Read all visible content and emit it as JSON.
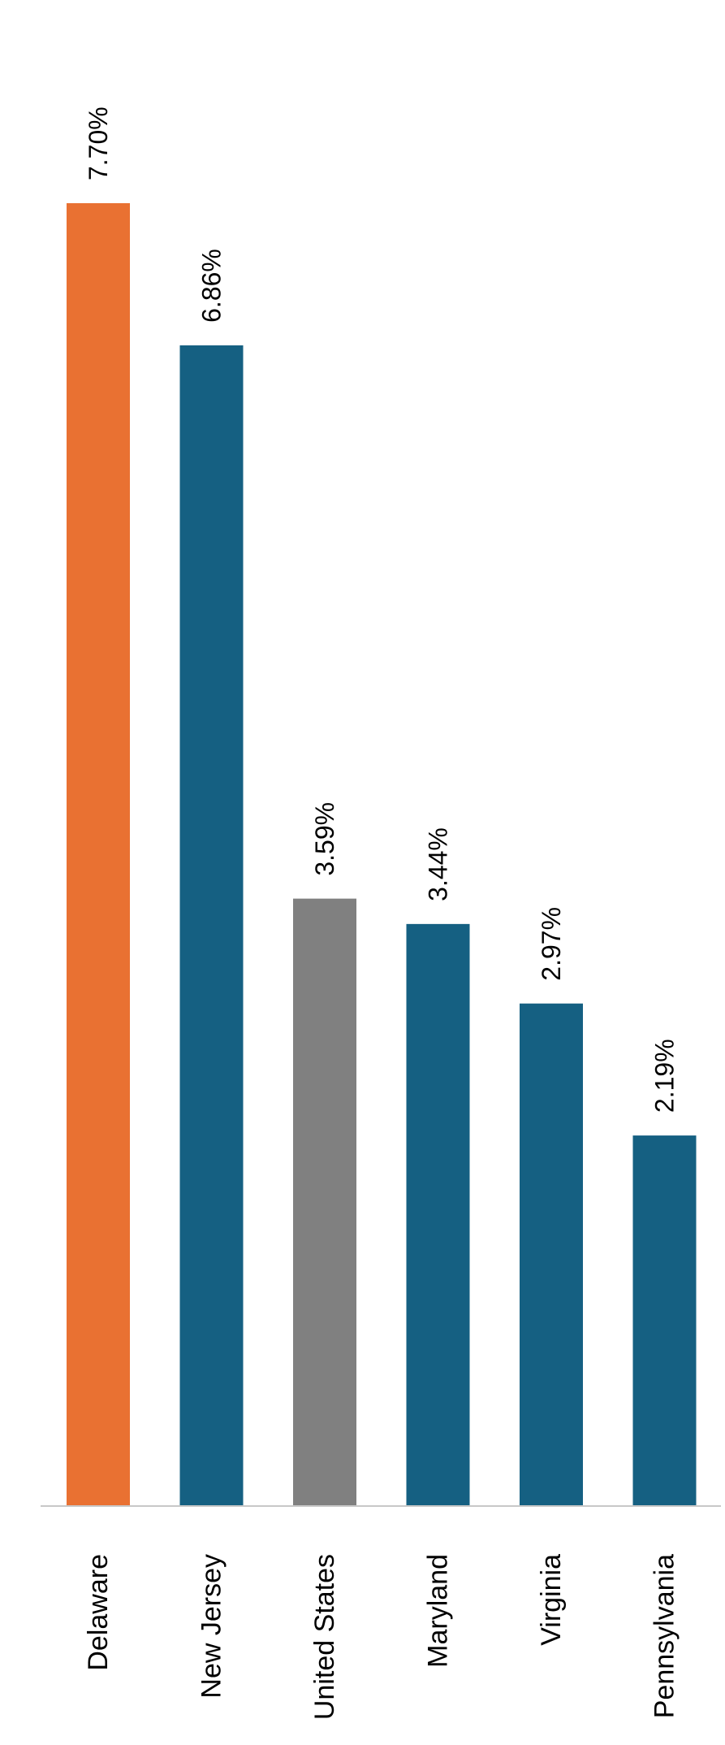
{
  "chart_data": {
    "type": "bar",
    "orientation": "vertical",
    "categories": [
      "Delaware",
      "New Jersey",
      "United States",
      "Maryland",
      "Virginia",
      "Pennsylvania"
    ],
    "values": [
      7.7,
      6.86,
      3.59,
      3.44,
      2.97,
      2.19
    ],
    "data_labels": [
      "7.70%",
      "6.86%",
      "3.59%",
      "3.44%",
      "2.97%",
      "2.19%"
    ],
    "colors": [
      "#E97132",
      "#156082",
      "#808080",
      "#156082",
      "#156082",
      "#156082"
    ],
    "ylim": [
      0,
      7.7
    ],
    "grid": false,
    "legend": "none",
    "label_rotation": "vertical"
  }
}
